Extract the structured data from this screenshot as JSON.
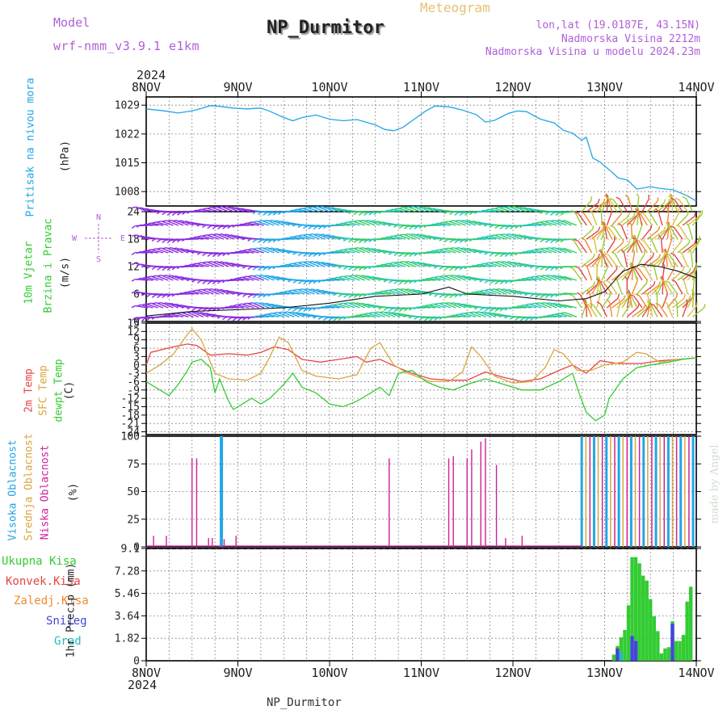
{
  "header": {
    "model_label": "Model",
    "model_name": "wrf-nmm_v3.9.1 e1km",
    "title": "NP_Durmitor",
    "subtitle": "Meteogram",
    "coords": "lon,lat (19.0187E, 43.15N)",
    "elevation": "Nadmorska Visina 2212m",
    "model_elevation": "Nadmorska Visina u modelu 2024.23m",
    "footer_station": "NP_Durmitor",
    "credit": "made by Angel"
  },
  "colors": {
    "pressure": "#22a6e6",
    "temp2m": "#e64545",
    "sfc": "#d9a640",
    "dewpt": "#33cc33",
    "high_cloud": "#22a6e6",
    "mid_cloud": "#d9a640",
    "low_cloud": "#cc2299",
    "total_precip": "#33cc33",
    "conv_precip": "#e64545",
    "frozen_precip": "#f08a30",
    "snow": "#4444dd",
    "graupel": "#22bbbb"
  },
  "chart_data": [
    {
      "type": "line",
      "panel": "pressure",
      "ylabel_lines": [
        "Pritisak na nivou mora",
        "(hPa)"
      ],
      "x_axis": {
        "top_year": "2024",
        "bottom_year": "2024",
        "ticks": [
          "8NOV",
          "9NOV",
          "10NOV",
          "11NOV",
          "12NOV",
          "13NOV",
          "14NOV"
        ],
        "range_days": [
          0,
          6
        ]
      },
      "ylim": [
        1004.5,
        1031
      ],
      "yticks": [
        1008,
        1015,
        1022,
        1029
      ],
      "series": [
        {
          "values": [
            [
              0,
              1028.1
            ],
            [
              0.2,
              1027.6
            ],
            [
              0.35,
              1027.1
            ],
            [
              0.5,
              1027.6
            ],
            [
              0.6,
              1028.2
            ],
            [
              0.7,
              1028.9
            ],
            [
              0.8,
              1028.7
            ],
            [
              0.95,
              1028.3
            ],
            [
              1.1,
              1028.1
            ],
            [
              1.25,
              1028.3
            ],
            [
              1.35,
              1027.5
            ],
            [
              1.5,
              1026.0
            ],
            [
              1.6,
              1025.2
            ],
            [
              1.7,
              1026.0
            ],
            [
              1.85,
              1026.6
            ],
            [
              2.0,
              1025.6
            ],
            [
              2.15,
              1025.2
            ],
            [
              2.3,
              1025.5
            ],
            [
              2.5,
              1024.2
            ],
            [
              2.6,
              1023.1
            ],
            [
              2.7,
              1022.8
            ],
            [
              2.8,
              1023.6
            ],
            [
              2.9,
              1025.2
            ],
            [
              3.05,
              1027.6
            ],
            [
              3.15,
              1028.8
            ],
            [
              3.3,
              1028.6
            ],
            [
              3.45,
              1027.8
            ],
            [
              3.6,
              1026.7
            ],
            [
              3.7,
              1024.9
            ],
            [
              3.8,
              1025.3
            ],
            [
              3.95,
              1027.0
            ],
            [
              4.05,
              1027.6
            ],
            [
              4.15,
              1027.4
            ],
            [
              4.3,
              1025.6
            ],
            [
              4.45,
              1024.7
            ],
            [
              4.55,
              1022.9
            ],
            [
              4.65,
              1022.2
            ],
            [
              4.75,
              1020.5
            ],
            [
              4.8,
              1021.2
            ],
            [
              4.87,
              1016.2
            ],
            [
              4.95,
              1015.2
            ],
            [
              5.05,
              1013.3
            ],
            [
              5.15,
              1011.3
            ],
            [
              5.25,
              1010.8
            ],
            [
              5.35,
              1008.6
            ],
            [
              5.5,
              1009.2
            ],
            [
              5.6,
              1008.8
            ],
            [
              5.75,
              1008.4
            ],
            [
              5.9,
              1007.0
            ],
            [
              6.0,
              1005.7
            ]
          ]
        }
      ]
    },
    {
      "type": "wind_barbs",
      "panel": "wind",
      "ylabel_lines": [
        "10m Vjetar",
        "Brzina i Pravac",
        "(m/s)"
      ],
      "compass": {
        "north": "N",
        "south": "S",
        "east": "E",
        "west": "W"
      },
      "ylim": [
        0,
        24
      ],
      "yticks": [
        0,
        6,
        12,
        18,
        24
      ],
      "wind_speed": [
        [
          0,
          1.2
        ],
        [
          0.5,
          2.2
        ],
        [
          1,
          2.6
        ],
        [
          1.5,
          3.0
        ],
        [
          2,
          4.0
        ],
        [
          2.5,
          5.5
        ],
        [
          3,
          6.0
        ],
        [
          3.3,
          7.5
        ],
        [
          3.5,
          6.0
        ],
        [
          4,
          5.5
        ],
        [
          4.5,
          4.5
        ],
        [
          4.8,
          5.0
        ],
        [
          5,
          6.5
        ],
        [
          5.2,
          11
        ],
        [
          5.4,
          12.5
        ],
        [
          5.6,
          12
        ],
        [
          5.8,
          11
        ],
        [
          6,
          9.5
        ]
      ]
    },
    {
      "type": "line",
      "panel": "temperature",
      "ylabel_lines": [
        "2m Temp",
        "SFC Temp",
        "dewpt Temp",
        "(C)"
      ],
      "ylim": [
        -25,
        15
      ],
      "yticks": [
        -24,
        -21,
        -18,
        -15,
        -12,
        -9,
        -6,
        -3,
        0,
        3,
        6,
        9,
        12,
        15
      ],
      "series": [
        {
          "name": "2m Temp",
          "color_key": "temp2m",
          "values": [
            [
              0,
              0
            ],
            [
              0.05,
              4.5
            ],
            [
              0.3,
              6.5
            ],
            [
              0.45,
              7.5
            ],
            [
              0.55,
              7
            ],
            [
              0.7,
              3.5
            ],
            [
              0.9,
              4
            ],
            [
              1.1,
              3.5
            ],
            [
              1.25,
              4.5
            ],
            [
              1.4,
              6.5
            ],
            [
              1.55,
              5.5
            ],
            [
              1.7,
              2
            ],
            [
              1.9,
              1
            ],
            [
              2.1,
              2
            ],
            [
              2.3,
              3
            ],
            [
              2.4,
              1
            ],
            [
              2.55,
              2
            ],
            [
              2.75,
              -1
            ],
            [
              2.9,
              -3
            ],
            [
              3.1,
              -5
            ],
            [
              3.3,
              -5.5
            ],
            [
              3.5,
              -5.5
            ],
            [
              3.7,
              -2.5
            ],
            [
              3.9,
              -4.5
            ],
            [
              4.1,
              -6
            ],
            [
              4.3,
              -5
            ],
            [
              4.5,
              -2
            ],
            [
              4.65,
              0
            ],
            [
              4.8,
              -3
            ],
            [
              4.95,
              1.5
            ],
            [
              5.15,
              0.5
            ],
            [
              5.4,
              0.5
            ],
            [
              5.6,
              1.5
            ],
            [
              5.8,
              2
            ],
            [
              6,
              2.5
            ]
          ]
        },
        {
          "name": "SFC Temp",
          "color_key": "sfc",
          "values": [
            [
              0,
              -3
            ],
            [
              0.15,
              0
            ],
            [
              0.3,
              4
            ],
            [
              0.45,
              11
            ],
            [
              0.5,
              13
            ],
            [
              0.6,
              9
            ],
            [
              0.75,
              -3
            ],
            [
              0.9,
              -5
            ],
            [
              1.1,
              -5.5
            ],
            [
              1.25,
              -3
            ],
            [
              1.35,
              3
            ],
            [
              1.45,
              10
            ],
            [
              1.55,
              8
            ],
            [
              1.7,
              -2
            ],
            [
              1.85,
              -4
            ],
            [
              2.1,
              -5
            ],
            [
              2.3,
              -3.5
            ],
            [
              2.45,
              6
            ],
            [
              2.55,
              8
            ],
            [
              2.7,
              0
            ],
            [
              2.85,
              -3
            ],
            [
              3.1,
              -6
            ],
            [
              3.3,
              -6
            ],
            [
              3.45,
              -2.5
            ],
            [
              3.55,
              6.5
            ],
            [
              3.65,
              3
            ],
            [
              3.8,
              -4
            ],
            [
              4.0,
              -6.5
            ],
            [
              4.2,
              -6
            ],
            [
              4.35,
              -1
            ],
            [
              4.45,
              5.5
            ],
            [
              4.55,
              4
            ],
            [
              4.7,
              -2
            ],
            [
              4.85,
              -2
            ],
            [
              5.0,
              0
            ],
            [
              5.2,
              1
            ],
            [
              5.35,
              4.5
            ],
            [
              5.45,
              4
            ],
            [
              5.6,
              1
            ],
            [
              5.8,
              2
            ],
            [
              6,
              2.5
            ]
          ]
        },
        {
          "name": "dewpt Temp",
          "color_key": "dewpt",
          "values": [
            [
              0,
              -6
            ],
            [
              0.1,
              -8
            ],
            [
              0.25,
              -11
            ],
            [
              0.35,
              -7
            ],
            [
              0.45,
              -2
            ],
            [
              0.5,
              1
            ],
            [
              0.6,
              2
            ],
            [
              0.7,
              -1
            ],
            [
              0.75,
              -10
            ],
            [
              0.8,
              -5
            ],
            [
              0.9,
              -13
            ],
            [
              0.95,
              -16
            ],
            [
              1.05,
              -14
            ],
            [
              1.15,
              -12
            ],
            [
              1.25,
              -14
            ],
            [
              1.35,
              -12
            ],
            [
              1.5,
              -7
            ],
            [
              1.6,
              -3
            ],
            [
              1.7,
              -8
            ],
            [
              1.85,
              -10
            ],
            [
              2.0,
              -14
            ],
            [
              2.15,
              -15
            ],
            [
              2.3,
              -13
            ],
            [
              2.45,
              -10
            ],
            [
              2.55,
              -8
            ],
            [
              2.65,
              -11
            ],
            [
              2.75,
              -3
            ],
            [
              2.9,
              -2
            ],
            [
              3.05,
              -6
            ],
            [
              3.2,
              -8
            ],
            [
              3.35,
              -9
            ],
            [
              3.5,
              -7
            ],
            [
              3.7,
              -5
            ],
            [
              3.9,
              -7
            ],
            [
              4.1,
              -9
            ],
            [
              4.3,
              -9
            ],
            [
              4.5,
              -6
            ],
            [
              4.65,
              -3
            ],
            [
              4.72,
              -10
            ],
            [
              4.8,
              -17
            ],
            [
              4.9,
              -20
            ],
            [
              5.0,
              -18
            ],
            [
              5.05,
              -12
            ],
            [
              5.2,
              -5
            ],
            [
              5.35,
              -1
            ],
            [
              5.5,
              0
            ],
            [
              5.7,
              1
            ],
            [
              5.85,
              2
            ],
            [
              6,
              2.5
            ]
          ]
        }
      ]
    },
    {
      "type": "bar",
      "panel": "cloud",
      "ylabel_lines": [
        "Visoka Oblacnost",
        "Srednja Oblacnost",
        "Niska Oblacnost",
        "(%)"
      ],
      "ylim": [
        0,
        100
      ],
      "yticks": [
        0,
        25,
        50,
        75,
        100
      ],
      "series": [
        {
          "name": "Niska Oblacnost",
          "color_key": "low_cloud",
          "values": [
            [
              0.08,
              10
            ],
            [
              0.22,
              10
            ],
            [
              0.5,
              80
            ],
            [
              0.55,
              80
            ],
            [
              0.68,
              8
            ],
            [
              0.72,
              8
            ],
            [
              0.85,
              7
            ],
            [
              0.98,
              10
            ],
            [
              2.65,
              80
            ],
            [
              3.3,
              80
            ],
            [
              3.35,
              82
            ],
            [
              3.5,
              80
            ],
            [
              3.55,
              88
            ],
            [
              3.65,
              95
            ],
            [
              3.7,
              98
            ],
            [
              3.82,
              74
            ],
            [
              3.92,
              8
            ],
            [
              4.1,
              10
            ]
          ]
        },
        {
          "name": "Visoka Oblacnost",
          "color_key": "high_cloud",
          "values": [
            [
              0.82,
              100
            ]
          ]
        },
        {
          "name": "Srednja Oblacnost",
          "color_key": "mid_cloud",
          "values": [
            [
              4.75,
              100
            ]
          ]
        }
      ]
    },
    {
      "type": "bar",
      "panel": "precip",
      "ylabel_lines": [
        "Ukupna Kisa",
        "Konvek.Kisa",
        "Zaledj.Kisa",
        "Snijeg",
        "Grad",
        "1hr Precip (mm)"
      ],
      "ylim": [
        0,
        9.1
      ],
      "yticks": [
        0,
        1.82,
        3.64,
        5.46,
        7.28,
        9.1
      ],
      "series": [
        {
          "name": "Ukupna Kisa",
          "color_key": "total_precip",
          "values": [
            [
              5.1,
              0.5
            ],
            [
              5.14,
              1.2
            ],
            [
              5.18,
              1.9
            ],
            [
              5.22,
              2.5
            ],
            [
              5.26,
              4.5
            ],
            [
              5.3,
              8.4
            ],
            [
              5.34,
              8.4
            ],
            [
              5.38,
              7.9
            ],
            [
              5.42,
              6.9
            ],
            [
              5.46,
              6.5
            ],
            [
              5.5,
              5.0
            ],
            [
              5.54,
              3.6
            ],
            [
              5.58,
              2.4
            ],
            [
              5.62,
              0.6
            ],
            [
              5.66,
              1.0
            ],
            [
              5.7,
              1.1
            ],
            [
              5.74,
              3.2
            ],
            [
              5.78,
              1.6
            ],
            [
              5.82,
              1.6
            ],
            [
              5.86,
              2.1
            ],
            [
              5.9,
              4.8
            ],
            [
              5.94,
              6.0
            ]
          ]
        },
        {
          "name": "Snijeg",
          "color_key": "snow",
          "values": [
            [
              5.14,
              1.0
            ],
            [
              5.3,
              2.0
            ],
            [
              5.34,
              1.6
            ],
            [
              5.74,
              3.0
            ]
          ]
        },
        {
          "name": "Grad",
          "color_key": "graupel",
          "values": [
            [
              5.18,
              0.7
            ]
          ]
        }
      ]
    }
  ]
}
